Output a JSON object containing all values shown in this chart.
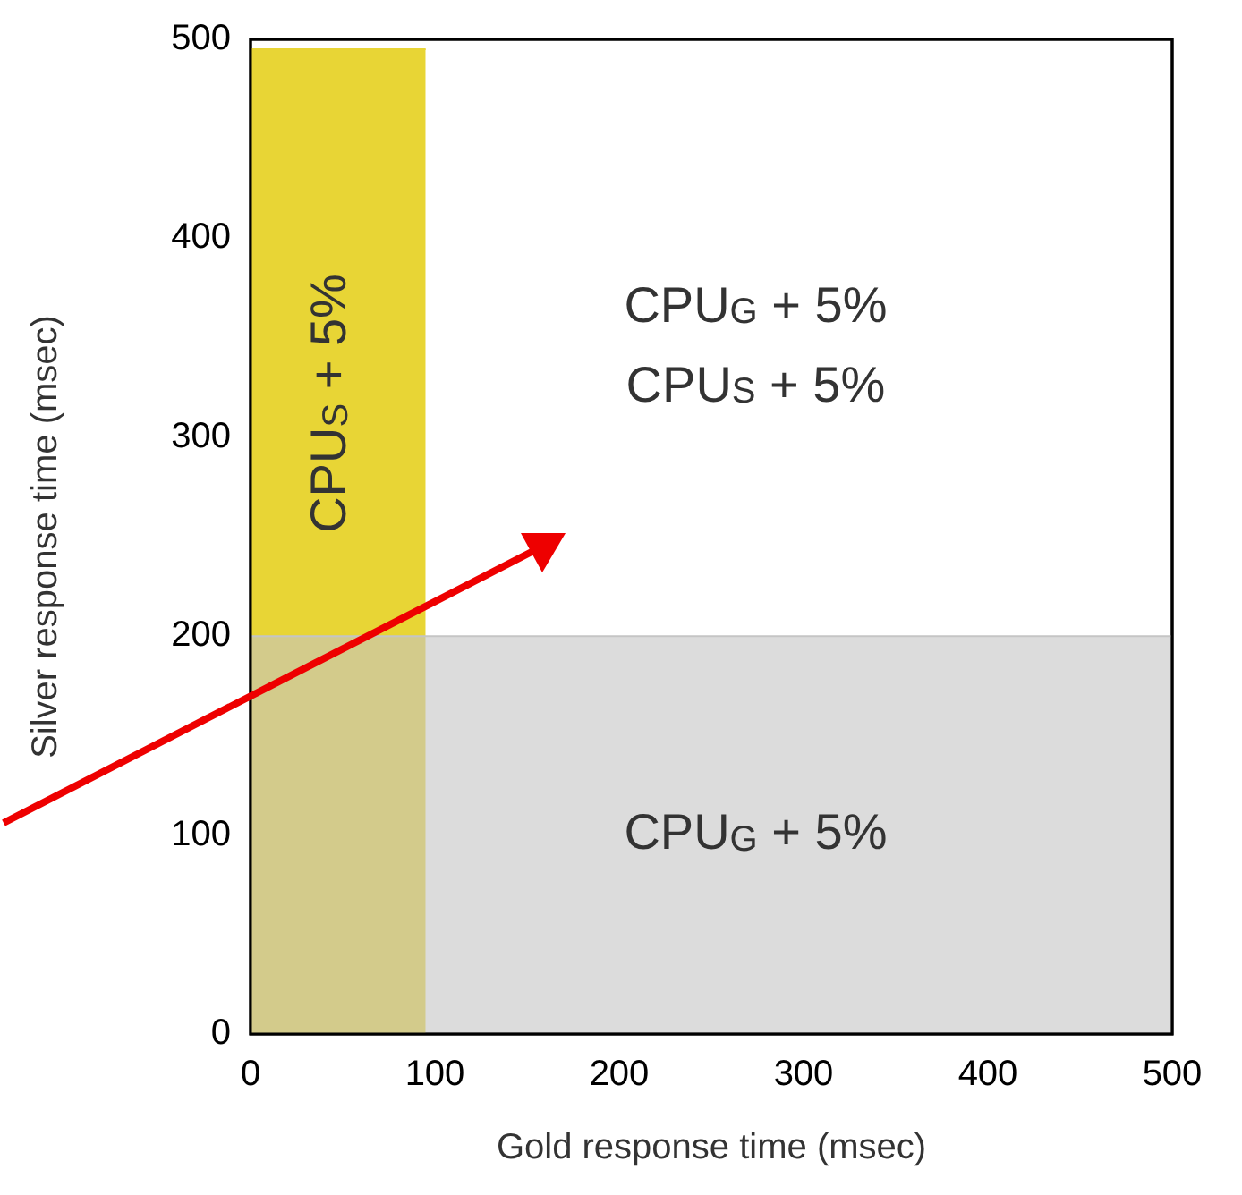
{
  "chart_data": {
    "type": "area",
    "xlabel": "Gold response time (msec)",
    "ylabel": "Silver response time (msec)",
    "xlim": [
      0,
      500
    ],
    "ylim": [
      0,
      500
    ],
    "xticks": [
      0,
      100,
      200,
      300,
      400,
      500
    ],
    "yticks": [
      0,
      100,
      200,
      300,
      400,
      500
    ],
    "marker": "none",
    "series": [
      {
        "color": "#e8d535",
        "x": [
          0,
          95
        ],
        "values": [
          495,
          495
        ]
      },
      {
        "color": "#c5c5c5",
        "x": [
          0,
          500
        ],
        "values": [
          200,
          200
        ]
      }
    ],
    "annotations": [
      "CPU$_{S}$ + 5%",
      "CPU$_{G}$ + 5%",
      "CPU$_{S}$ + 5%",
      "CPU$_{G}$ + 5%"
    ]
  }
}
